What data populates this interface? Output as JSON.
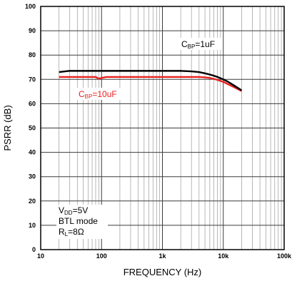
{
  "chart_data": {
    "type": "line",
    "title": "",
    "xlabel": "FREQUENCY (Hz)",
    "ylabel": "PSRR (dB)",
    "x_scale": "log",
    "xlim": [
      10,
      100000
    ],
    "ylim": [
      0,
      100
    ],
    "x_ticks": [
      "10",
      "100",
      "1k",
      "10k",
      "100k"
    ],
    "y_ticks": [
      "0",
      "10",
      "20",
      "30",
      "40",
      "50",
      "60",
      "70",
      "80",
      "90",
      "100"
    ],
    "grid": true,
    "series": [
      {
        "name_parts": [
          "C",
          "BP",
          "=1uF"
        ],
        "color": "#000000",
        "x": [
          20,
          30,
          50,
          100,
          200,
          500,
          1000,
          2000,
          3000,
          4000,
          5000,
          6000,
          7000,
          8000,
          10000,
          12000,
          15000,
          20000
        ],
        "y": [
          73,
          73.5,
          73.5,
          73.5,
          73.5,
          73.5,
          73.5,
          73.5,
          73.3,
          73,
          72.5,
          72,
          71.5,
          71,
          70,
          69,
          67.5,
          65.5
        ]
      },
      {
        "name_parts": [
          "C",
          "BP",
          "=10uF"
        ],
        "color": "#e8201e",
        "x": [
          20,
          30,
          50,
          80,
          90,
          100,
          120,
          150,
          200,
          500,
          1000,
          2000,
          3000,
          4000,
          5000,
          6000,
          7000,
          8000,
          10000,
          12000,
          15000,
          20000
        ],
        "y": [
          71,
          71,
          71,
          71,
          70.3,
          70.6,
          71,
          71,
          71,
          71,
          71,
          71,
          71,
          71,
          70.8,
          70.6,
          70.2,
          69.8,
          69,
          68,
          66.8,
          65.2
        ]
      }
    ],
    "annotations": {
      "cond_vdd": [
        "V",
        "DD",
        "=5V"
      ],
      "cond_mode": "BTL mode",
      "cond_rl": [
        "R",
        "L",
        "=8Ω"
      ]
    }
  }
}
